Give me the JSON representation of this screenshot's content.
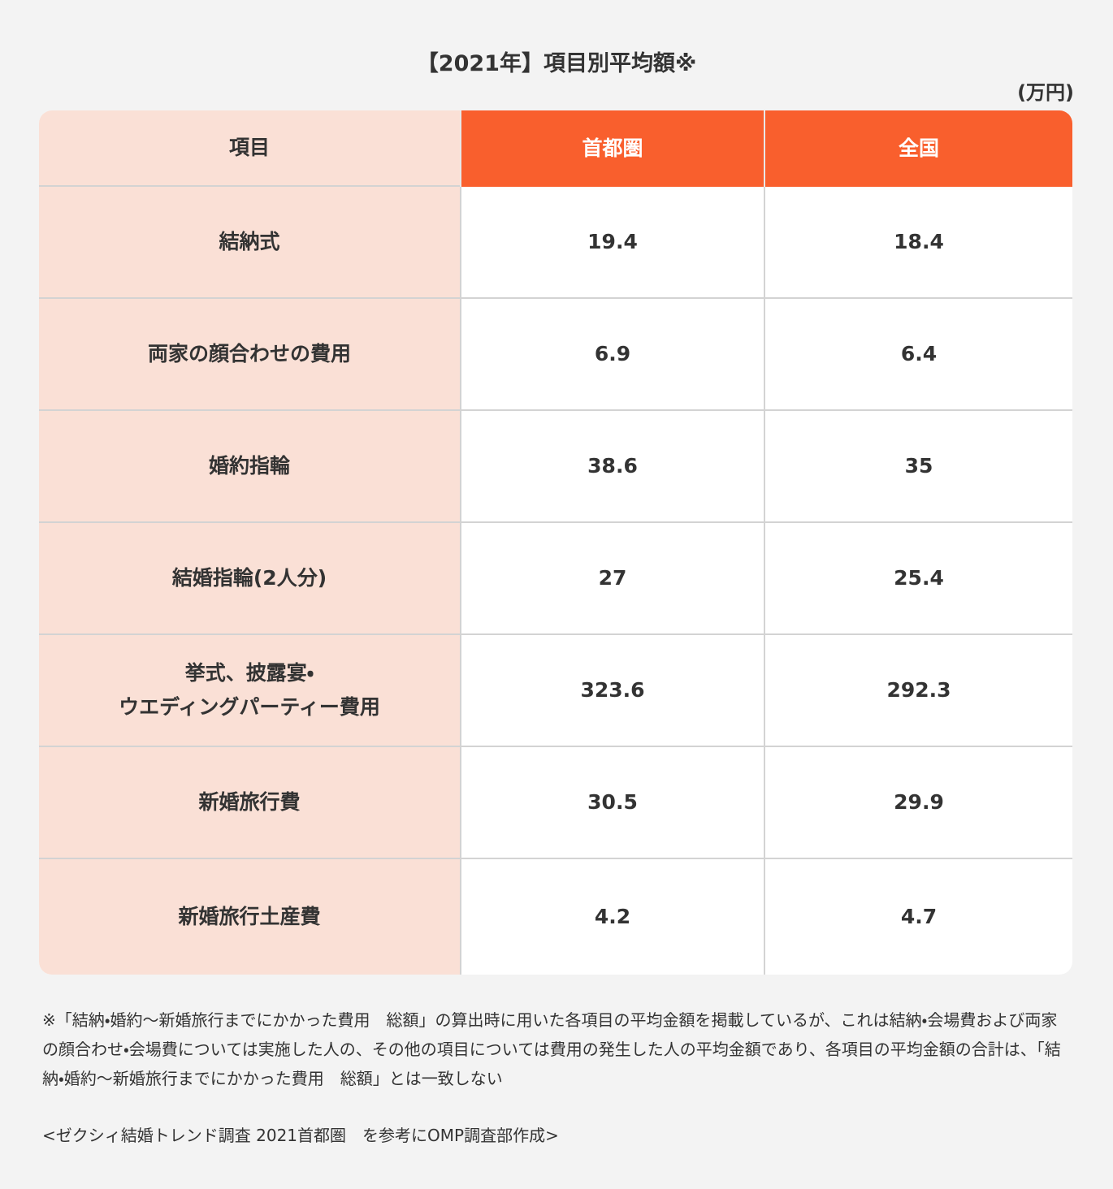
{
  "header": {
    "title": "【2021年】項目別平均額※",
    "unit": "(万円)"
  },
  "table": {
    "columns": [
      "項目",
      "首都圏",
      "全国"
    ],
    "rows": [
      [
        "結納式",
        "19.4",
        "18.4"
      ],
      [
        "両家の顔合わせの費用",
        "6.9",
        "6.4"
      ],
      [
        "婚約指輪",
        "38.6",
        "35"
      ],
      [
        "結婚指輪(2人分)",
        "27",
        "25.4"
      ],
      [
        "挙式、披露宴・\nウエディングパーティー費用",
        "323.6",
        "292.3"
      ],
      [
        "新婚旅行費",
        "30.5",
        "29.9"
      ],
      [
        "新婚旅行土産費",
        "4.2",
        "4.7"
      ]
    ]
  },
  "notes": {
    "footnote": "※「結納・婚約〜新婚旅行までにかかった費用　総額」の算出時に用いた各項目の平均金額を掲載しているが、これは結納・会場費および両家の顔合わせ・会場費については実施した人の、その他の項目については費用の発生した人の平均金額であり、各項目の平均金額の合計は、「結納・婚約〜新婚旅行までにかかった費用　総額」とは一致しない",
    "source": "<ゼクシィ結婚トレンド調査 2021首都圏　を参考にOMP調査部作成>"
  }
}
